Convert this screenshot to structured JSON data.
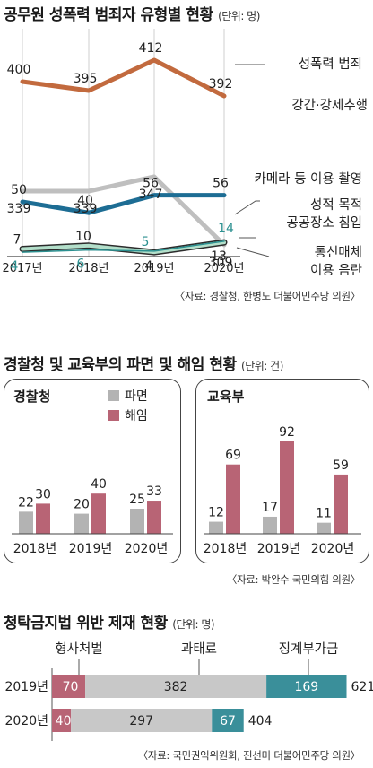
{
  "section1": {
    "title": "공무원 성폭력 범죄자 유형별 현황",
    "unit": "(단위: 명)",
    "source": "〈자료: 경찰청, 한병도 더불어민주당 의원〉"
  },
  "section2": {
    "title": "경찰청 및 교육부의 파면 및 해임 현황",
    "unit": "(단위: 건)",
    "panel_police": "경찰청",
    "panel_edu": "교육부",
    "legend_dismissal": "파면",
    "legend_removal": "해임",
    "source": "〈자료: 박완수 국민의힘 의원〉"
  },
  "section3": {
    "title": "청탁금지법 위반 제재 현황",
    "unit": "(단위: 명)",
    "source": "〈자료: 국민권익위원회, 진선미 더불어민주당 의원〉"
  },
  "colors": {
    "sexual_violence": "#c26a3e",
    "rape": "#bfbfbf",
    "camera": "#1d6d94",
    "public_place": "#2c9090",
    "telecom_fill": "#b3dfca",
    "telecom_stroke": "#2c2c2c",
    "dismissal": "#b3b3b3",
    "removal": "#b86475",
    "penalty_criminal": "#b86475",
    "penalty_fine": "#c8c8c8",
    "penalty_surcharge": "#3a8f9a"
  },
  "chart_data": [
    {
      "type": "line",
      "x": [
        "2017년",
        "2018년",
        "2019년",
        "2020년"
      ],
      "series": [
        {
          "name": "성폭력 범죄",
          "values": [
            400,
            395,
            412,
            392
          ]
        },
        {
          "name": "강간·강제추행",
          "values": [
            339,
            339,
            347,
            309
          ]
        },
        {
          "name": "카메라 등 이용 촬영",
          "values": [
            50,
            40,
            56,
            56
          ]
        },
        {
          "name": "성적 목적 공공장소 침입",
          "values": [
            4,
            6,
            5,
            14
          ]
        },
        {
          "name": "통신매체 이용 음란",
          "values": [
            7,
            10,
            4,
            13
          ]
        }
      ]
    },
    {
      "type": "bar",
      "title": "경찰청",
      "categories": [
        "2018년",
        "2019년",
        "2020년"
      ],
      "series": [
        {
          "name": "파면",
          "values": [
            22,
            20,
            25
          ]
        },
        {
          "name": "해임",
          "values": [
            30,
            40,
            33
          ]
        }
      ]
    },
    {
      "type": "bar",
      "title": "교육부",
      "categories": [
        "2018년",
        "2019년",
        "2020년"
      ],
      "series": [
        {
          "name": "파면",
          "values": [
            12,
            17,
            11
          ]
        },
        {
          "name": "해임",
          "values": [
            69,
            92,
            59
          ]
        }
      ]
    },
    {
      "type": "bar",
      "categories": [
        "2019년",
        "2020년"
      ],
      "series": [
        {
          "name": "형사처벌",
          "values": [
            70,
            40
          ]
        },
        {
          "name": "과태료",
          "values": [
            382,
            297
          ]
        },
        {
          "name": "징계부가금",
          "values": [
            169,
            67
          ]
        }
      ],
      "totals": [
        621,
        404
      ]
    }
  ]
}
